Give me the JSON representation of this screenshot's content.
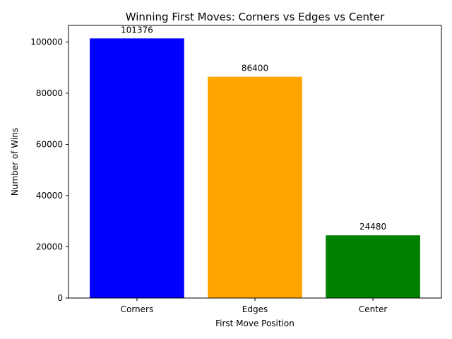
{
  "chart_data": {
    "type": "bar",
    "title": "Winning First Moves: Corners vs Edges vs Center",
    "xlabel": "First Move Position",
    "ylabel": "Number of Wins",
    "categories": [
      "Corners",
      "Edges",
      "Center"
    ],
    "values": [
      101376,
      86400,
      24480
    ],
    "data_labels": [
      "101376",
      "86400",
      "24480"
    ],
    "colors": [
      "#0000ff",
      "#ffa500",
      "#008000"
    ],
    "ylim": [
      0,
      106444.8
    ],
    "yticks": [
      0,
      20000,
      40000,
      60000,
      80000,
      100000
    ],
    "ytick_labels": [
      "0",
      "20000",
      "40000",
      "60000",
      "80000",
      "100000"
    ],
    "grid": false,
    "legend": "none"
  }
}
